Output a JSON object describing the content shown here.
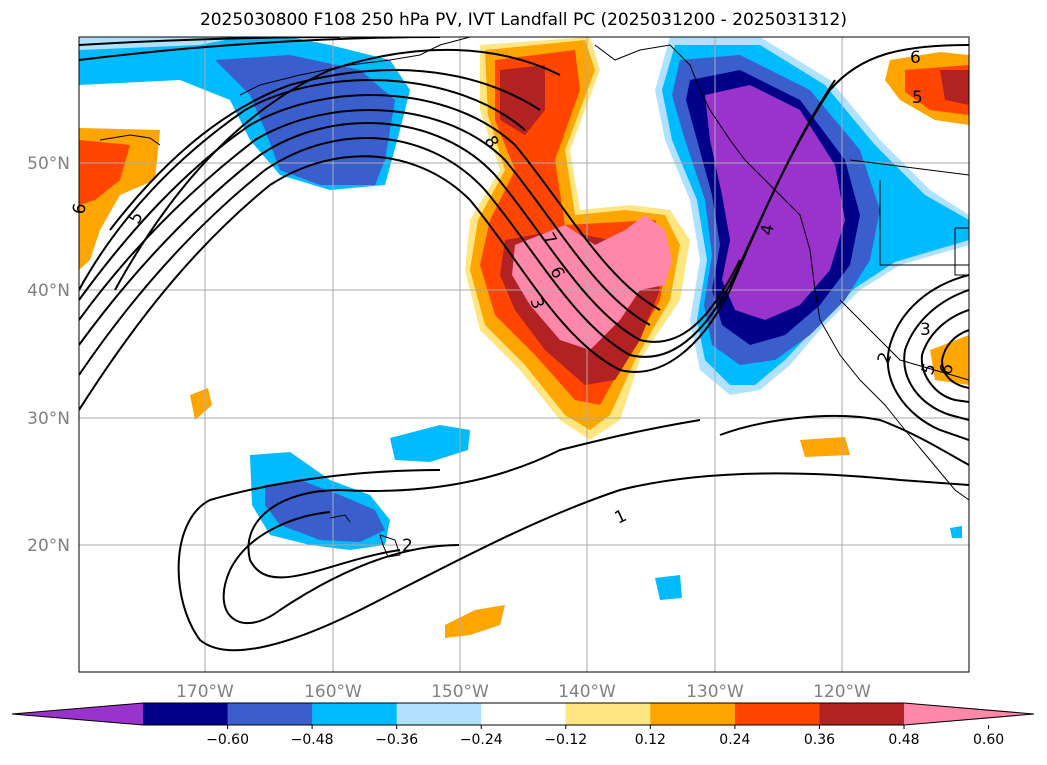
{
  "title": "2025030800 F108 250 hPa PV, IVT Landfall PC (2025031200 - 2025031312)",
  "lat_labels": [
    "20°N",
    "30°N",
    "40°N",
    "50°N"
  ],
  "lon_labels": [
    "170°W",
    "160°W",
    "150°W",
    "140°W",
    "130°W",
    "120°W"
  ],
  "colorbar": {
    "ticks": [
      "−0.60",
      "−0.48",
      "−0.36",
      "−0.24",
      "−0.12",
      "0.12",
      "0.24",
      "0.36",
      "0.48",
      "0.60"
    ],
    "colors": [
      "#9933cc",
      "#000088",
      "#3a5fcd",
      "#00bbff",
      "#b0e2ff",
      "#ffffff",
      "#ffe680",
      "#ffa500",
      "#ff4500",
      "#b22222",
      "#ff88aa"
    ]
  },
  "contour_labels": [
    "1",
    "2",
    "2",
    "3",
    "3",
    "4",
    "5",
    "5",
    "5",
    "6",
    "6",
    "6",
    "6",
    "7",
    "8"
  ],
  "legend_colors": {
    "land_outline": "#000000",
    "grid": "#aaaaaa"
  }
}
